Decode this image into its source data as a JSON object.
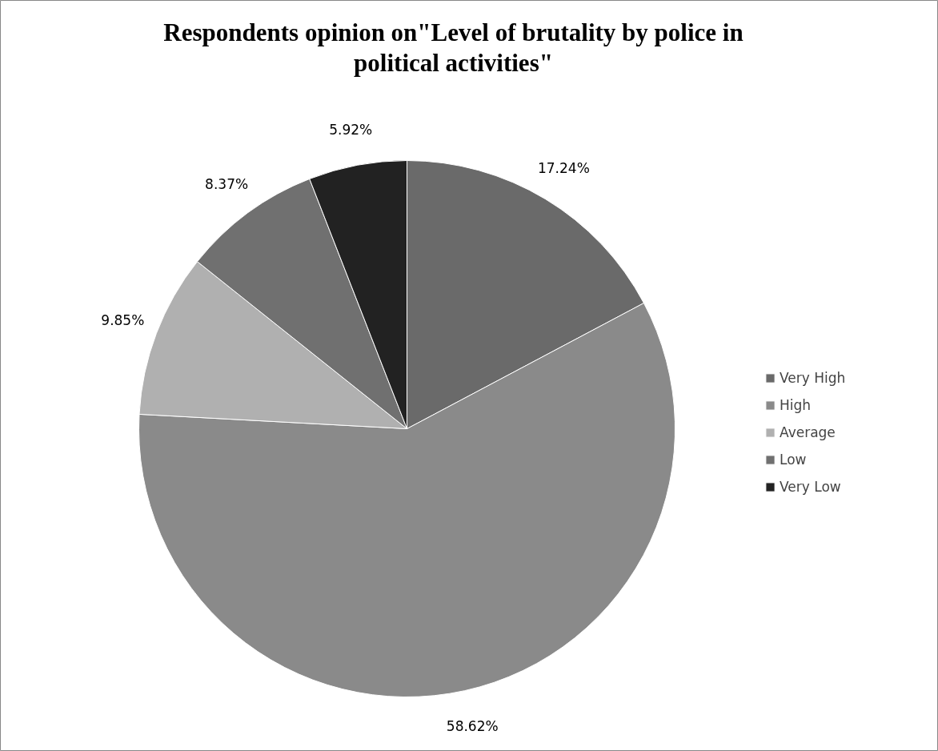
{
  "chart_data": {
    "type": "pie",
    "title": "Respondents opinion on\"Level of brutality by police in political activities\"",
    "categories": [
      "Very High",
      "High",
      "Average",
      "Low",
      "Very Low"
    ],
    "values": [
      17.24,
      58.62,
      9.85,
      8.37,
      5.92
    ],
    "colors": [
      "#6a6a6a",
      "#8a8a8a",
      "#b0b0b0",
      "#707070",
      "#222222"
    ],
    "value_labels": [
      "17.24%",
      "58.62%",
      "9.85%",
      "8.37%",
      "5.92%"
    ],
    "legend": "right"
  }
}
